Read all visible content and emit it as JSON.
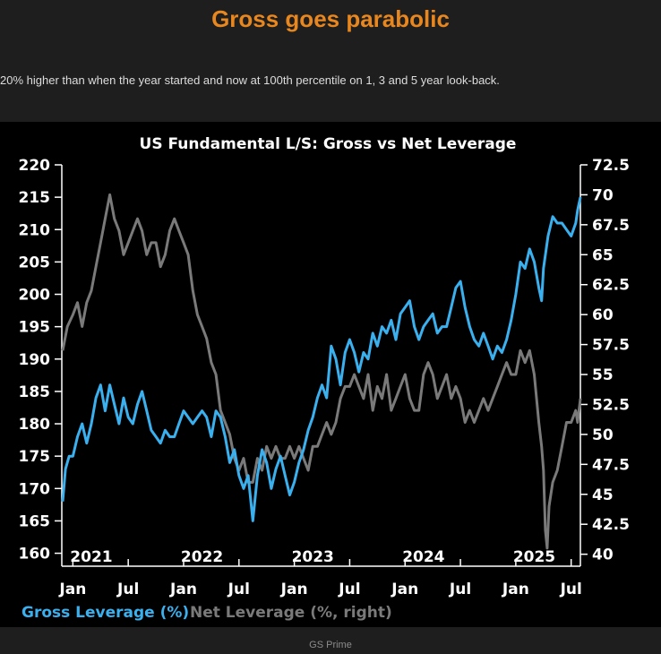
{
  "header": {
    "headline": "Gross goes parabolic",
    "subtitle": "20% higher than when the year started and now at 100th percentile on 1, 3 and 5 year look-back."
  },
  "footer": {
    "source": "GS Prime"
  },
  "colors": {
    "gross": "#3ab0ee",
    "net": "#7a7a7a",
    "headline": "#e8871e",
    "axis": "#ffffff"
  },
  "chart_data": {
    "type": "line",
    "title": "US Fundamental L/S: Gross vs Net Leverage",
    "x_unit": "months since Jan 2021",
    "xlim": [
      -1.2,
      55
    ],
    "month_ticks": [
      {
        "m": 0,
        "label": "Jan"
      },
      {
        "m": 6,
        "label": "Jul"
      },
      {
        "m": 12,
        "label": "Jan"
      },
      {
        "m": 18,
        "label": "Jul"
      },
      {
        "m": 24,
        "label": "Jan"
      },
      {
        "m": 30,
        "label": "Jul"
      },
      {
        "m": 36,
        "label": "Jan"
      },
      {
        "m": 42,
        "label": "Jul"
      },
      {
        "m": 48,
        "label": "Jan"
      },
      {
        "m": 54,
        "label": "Jul"
      }
    ],
    "year_labels": [
      {
        "m": 2,
        "label": "2021"
      },
      {
        "m": 14,
        "label": "2022"
      },
      {
        "m": 26,
        "label": "2023"
      },
      {
        "m": 38,
        "label": "2024"
      },
      {
        "m": 50,
        "label": "2025"
      }
    ],
    "left_axis": {
      "label": "Gross Leverage (%)",
      "min": 158,
      "max": 220,
      "ticks": [
        160,
        165,
        170,
        175,
        180,
        185,
        190,
        195,
        200,
        205,
        210,
        215,
        220
      ]
    },
    "right_axis": {
      "label": "Net Leverage (%, right)",
      "min": 39,
      "max": 72.5,
      "ticks": [
        "40",
        "42.5",
        "45",
        "47.5",
        "50",
        "52.5",
        "55",
        "57.5",
        "60",
        "62.5",
        "65",
        "67.5",
        "70",
        "72.5"
      ]
    },
    "series": [
      {
        "name": "Gross Leverage (%)",
        "axis": "left",
        "points": [
          [
            -1.1,
            168
          ],
          [
            -0.8,
            173
          ],
          [
            -0.4,
            175
          ],
          [
            0,
            175
          ],
          [
            0.5,
            178
          ],
          [
            1,
            180
          ],
          [
            1.5,
            177
          ],
          [
            2,
            180
          ],
          [
            2.5,
            184
          ],
          [
            3,
            186
          ],
          [
            3.5,
            182
          ],
          [
            4,
            186
          ],
          [
            4.5,
            183
          ],
          [
            5,
            180
          ],
          [
            5.5,
            184
          ],
          [
            6,
            181
          ],
          [
            6.5,
            180
          ],
          [
            7,
            183
          ],
          [
            7.5,
            185
          ],
          [
            8,
            182
          ],
          [
            8.5,
            179
          ],
          [
            9,
            178
          ],
          [
            9.5,
            177
          ],
          [
            10,
            179
          ],
          [
            10.5,
            178
          ],
          [
            11,
            178
          ],
          [
            11.5,
            180
          ],
          [
            12,
            182
          ],
          [
            12.5,
            181
          ],
          [
            13,
            180
          ],
          [
            13.5,
            181
          ],
          [
            14,
            182
          ],
          [
            14.5,
            181
          ],
          [
            15,
            178
          ],
          [
            15.5,
            182
          ],
          [
            16,
            181
          ],
          [
            16.5,
            178
          ],
          [
            17,
            174
          ],
          [
            17.5,
            176
          ],
          [
            18,
            172
          ],
          [
            18.5,
            170
          ],
          [
            19,
            172
          ],
          [
            19.5,
            165
          ],
          [
            20,
            172
          ],
          [
            20.5,
            176
          ],
          [
            21,
            174
          ],
          [
            21.5,
            170
          ],
          [
            22,
            173
          ],
          [
            22.5,
            175
          ],
          [
            23,
            172
          ],
          [
            23.5,
            169
          ],
          [
            24,
            171
          ],
          [
            24.5,
            174
          ],
          [
            25,
            176
          ],
          [
            25.5,
            179
          ],
          [
            26,
            181
          ],
          [
            26.5,
            184
          ],
          [
            27,
            186
          ],
          [
            27.5,
            184
          ],
          [
            28,
            192
          ],
          [
            28.5,
            190
          ],
          [
            29,
            186
          ],
          [
            29.5,
            191
          ],
          [
            30,
            193
          ],
          [
            30.5,
            191
          ],
          [
            31,
            188
          ],
          [
            31.5,
            191
          ],
          [
            32,
            190
          ],
          [
            32.5,
            194
          ],
          [
            33,
            192
          ],
          [
            33.5,
            195
          ],
          [
            34,
            194
          ],
          [
            34.5,
            196
          ],
          [
            35,
            193
          ],
          [
            35.5,
            197
          ],
          [
            36,
            198
          ],
          [
            36.5,
            199
          ],
          [
            37,
            195
          ],
          [
            37.5,
            193
          ],
          [
            38,
            195
          ],
          [
            38.5,
            196
          ],
          [
            39,
            197
          ],
          [
            39.5,
            194
          ],
          [
            40,
            195
          ],
          [
            40.5,
            195
          ],
          [
            41,
            198
          ],
          [
            41.5,
            201
          ],
          [
            42,
            202
          ],
          [
            42.5,
            198
          ],
          [
            43,
            195
          ],
          [
            43.5,
            193
          ],
          [
            44,
            192
          ],
          [
            44.5,
            194
          ],
          [
            45,
            192
          ],
          [
            45.5,
            190
          ],
          [
            46,
            192
          ],
          [
            46.5,
            191
          ],
          [
            47,
            193
          ],
          [
            47.5,
            196
          ],
          [
            48,
            200
          ],
          [
            48.5,
            205
          ],
          [
            49,
            204
          ],
          [
            49.5,
            207
          ],
          [
            50,
            205
          ],
          [
            50.5,
            201
          ],
          [
            50.8,
            199
          ],
          [
            51,
            204
          ],
          [
            51.5,
            209
          ],
          [
            52,
            212
          ],
          [
            52.5,
            211
          ],
          [
            53,
            211
          ],
          [
            53.5,
            210
          ],
          [
            54,
            209
          ],
          [
            54.5,
            211
          ],
          [
            54.7,
            213
          ],
          [
            55,
            215
          ]
        ]
      },
      {
        "name": "Net Leverage (%, right)",
        "axis": "right",
        "points": [
          [
            -1.1,
            57
          ],
          [
            -0.6,
            59
          ],
          [
            0,
            60
          ],
          [
            0.5,
            61
          ],
          [
            1,
            59
          ],
          [
            1.5,
            61
          ],
          [
            2,
            62
          ],
          [
            2.5,
            64
          ],
          [
            3,
            66
          ],
          [
            3.5,
            68
          ],
          [
            4,
            70
          ],
          [
            4.5,
            68
          ],
          [
            5,
            67
          ],
          [
            5.5,
            65
          ],
          [
            6,
            66
          ],
          [
            6.5,
            67
          ],
          [
            7,
            68
          ],
          [
            7.5,
            67
          ],
          [
            8,
            65
          ],
          [
            8.5,
            66
          ],
          [
            9,
            66
          ],
          [
            9.5,
            64
          ],
          [
            10,
            65
          ],
          [
            10.5,
            67
          ],
          [
            11,
            68
          ],
          [
            11.5,
            67
          ],
          [
            12,
            66
          ],
          [
            12.5,
            65
          ],
          [
            13,
            62
          ],
          [
            13.5,
            60
          ],
          [
            14,
            59
          ],
          [
            14.5,
            58
          ],
          [
            15,
            56
          ],
          [
            15.5,
            55
          ],
          [
            16,
            52
          ],
          [
            16.5,
            51
          ],
          [
            17,
            50
          ],
          [
            17.5,
            48
          ],
          [
            18,
            47
          ],
          [
            18.5,
            48
          ],
          [
            19,
            46
          ],
          [
            19.5,
            46
          ],
          [
            20,
            48
          ],
          [
            20.5,
            47
          ],
          [
            21,
            49
          ],
          [
            21.5,
            48
          ],
          [
            22,
            49
          ],
          [
            22.5,
            48
          ],
          [
            23,
            48
          ],
          [
            23.5,
            49
          ],
          [
            24,
            48
          ],
          [
            24.5,
            49
          ],
          [
            25,
            48
          ],
          [
            25.5,
            47
          ],
          [
            26,
            49
          ],
          [
            26.5,
            49
          ],
          [
            27,
            50
          ],
          [
            27.5,
            51
          ],
          [
            28,
            50
          ],
          [
            28.5,
            51
          ],
          [
            29,
            53
          ],
          [
            29.5,
            54
          ],
          [
            30,
            54
          ],
          [
            30.5,
            55
          ],
          [
            31,
            54
          ],
          [
            31.5,
            53
          ],
          [
            32,
            55
          ],
          [
            32.5,
            52
          ],
          [
            33,
            54
          ],
          [
            33.5,
            53
          ],
          [
            34,
            55
          ],
          [
            34.5,
            52
          ],
          [
            35,
            53
          ],
          [
            35.5,
            54
          ],
          [
            36,
            55
          ],
          [
            36.5,
            53
          ],
          [
            37,
            52
          ],
          [
            37.5,
            52
          ],
          [
            38,
            55
          ],
          [
            38.5,
            56
          ],
          [
            39,
            55
          ],
          [
            39.5,
            53
          ],
          [
            40,
            54
          ],
          [
            40.5,
            55
          ],
          [
            41,
            53
          ],
          [
            41.5,
            54
          ],
          [
            42,
            53
          ],
          [
            42.5,
            51
          ],
          [
            43,
            52
          ],
          [
            43.5,
            51
          ],
          [
            44,
            52
          ],
          [
            44.5,
            53
          ],
          [
            45,
            52
          ],
          [
            45.5,
            53
          ],
          [
            46,
            54
          ],
          [
            46.5,
            55
          ],
          [
            47,
            56
          ],
          [
            47.5,
            55
          ],
          [
            48,
            55
          ],
          [
            48.5,
            57
          ],
          [
            49,
            56
          ],
          [
            49.5,
            57
          ],
          [
            50,
            55
          ],
          [
            50.5,
            51
          ],
          [
            50.8,
            49
          ],
          [
            51,
            47
          ],
          [
            51.2,
            42
          ],
          [
            51.4,
            40.5
          ],
          [
            51.6,
            44
          ],
          [
            52,
            46
          ],
          [
            52.5,
            47
          ],
          [
            53,
            49
          ],
          [
            53.5,
            51
          ],
          [
            54,
            51
          ],
          [
            54.5,
            52
          ],
          [
            54.7,
            51
          ],
          [
            55,
            53
          ]
        ]
      }
    ]
  }
}
